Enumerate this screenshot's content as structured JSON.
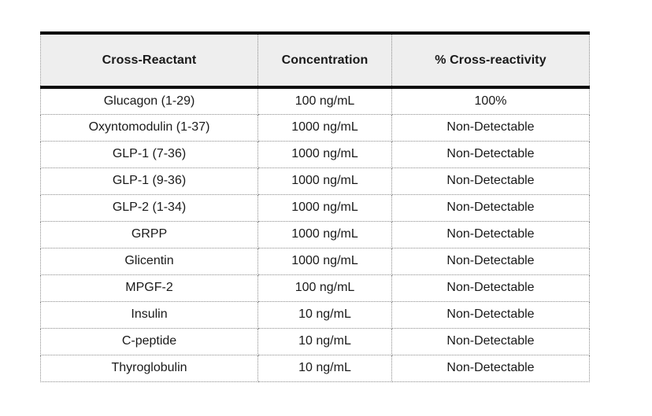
{
  "colors": {
    "page-bg": "#ffffff",
    "header-bg": "#eeeeee",
    "text": "#1a1a1a",
    "thick-border": "#0d0d0d",
    "dotted-border": "#8a8a8a"
  },
  "table": {
    "columns": [
      {
        "label": "Cross-Reactant"
      },
      {
        "label": "Concentration"
      },
      {
        "label": "% Cross-reactivity"
      }
    ],
    "rows": [
      {
        "cross_reactant": "Glucagon (1-29)",
        "concentration": "100 ng/mL",
        "cross_reactivity": "100%"
      },
      {
        "cross_reactant": "Oxyntomodulin (1-37)",
        "concentration": "1000 ng/mL",
        "cross_reactivity": "Non-Detectable"
      },
      {
        "cross_reactant": "GLP-1 (7-36)",
        "concentration": "1000 ng/mL",
        "cross_reactivity": "Non-Detectable"
      },
      {
        "cross_reactant": "GLP-1 (9-36)",
        "concentration": "1000 ng/mL",
        "cross_reactivity": "Non-Detectable"
      },
      {
        "cross_reactant": "GLP-2 (1-34)",
        "concentration": "1000 ng/mL",
        "cross_reactivity": "Non-Detectable"
      },
      {
        "cross_reactant": "GRPP",
        "concentration": "1000 ng/mL",
        "cross_reactivity": "Non-Detectable"
      },
      {
        "cross_reactant": "Glicentin",
        "concentration": "1000 ng/mL",
        "cross_reactivity": "Non-Detectable"
      },
      {
        "cross_reactant": "MPGF-2",
        "concentration": "100 ng/mL",
        "cross_reactivity": "Non-Detectable"
      },
      {
        "cross_reactant": "Insulin",
        "concentration": "10 ng/mL",
        "cross_reactivity": "Non-Detectable"
      },
      {
        "cross_reactant": "C-peptide",
        "concentration": "10 ng/mL",
        "cross_reactivity": "Non-Detectable"
      },
      {
        "cross_reactant": "Thyroglobulin",
        "concentration": "10 ng/mL",
        "cross_reactivity": "Non-Detectable"
      }
    ]
  }
}
